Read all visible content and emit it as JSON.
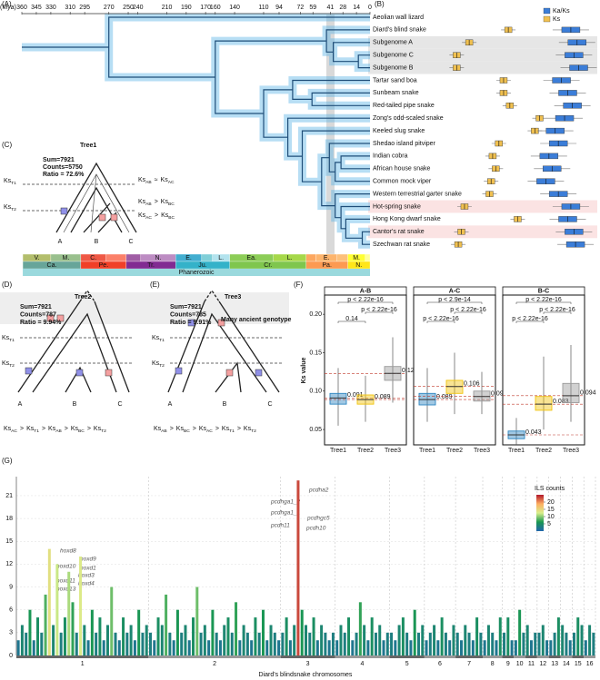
{
  "panel_labels": [
    "(A)",
    "(B)",
    "(C)",
    "(D)",
    "(E)",
    "(F)",
    "(G)"
  ],
  "panel_a": {
    "type": "timetree",
    "axis_label": "(Mya)",
    "xlim": [
      360,
      0
    ],
    "xticks": [
      360,
      345,
      330,
      310,
      295,
      270,
      250,
      240,
      210,
      190,
      170,
      160,
      140,
      110,
      94,
      72,
      59,
      41,
      28,
      14,
      0
    ],
    "species": [
      "Aeolian wall lizard",
      "Diard's blind snake",
      "Subgenome A",
      "Subgenome C",
      "Subgenome B",
      "Tartar sand boa",
      "Sunbeam snake",
      "Red-tailed pipe snake",
      "Zong's odd-scaled snake",
      "Keeled slug snake",
      "Shedao island pitviper",
      "Indian cobra",
      "African house snake",
      "Common mock viper",
      "Western terrestrial garter snake",
      "Hot-spring snake",
      "Hong Kong dwarf snake",
      "Cantor's rat snake",
      "Szechwan rat snake"
    ],
    "species_colors": [
      "#000000",
      "#d62728",
      "#d62728",
      "#d62728",
      "#d62728",
      "#000000",
      "#000000",
      "#000000",
      "#000000",
      "#000000",
      "#000000",
      "#000000",
      "#000000",
      "#000000",
      "#000000",
      "#d62728",
      "#000000",
      "#d62728",
      "#000000"
    ],
    "row_highlights": [
      null,
      null,
      "#e6e6e6",
      "#e6e6e6",
      "#e6e6e6",
      null,
      null,
      null,
      null,
      null,
      null,
      null,
      null,
      null,
      null,
      "#fbe3e3",
      null,
      "#fbe3e3",
      null
    ],
    "epochs": [
      {
        "label": "V.",
        "start": 359,
        "end": 330,
        "color": "#b3be6c"
      },
      {
        "label": "M.",
        "start": 330,
        "end": 299,
        "color": "#99c08d"
      },
      {
        "label": "C.",
        "start": 299,
        "end": 273,
        "color": "#ef5845"
      },
      {
        "label": null,
        "start": 273,
        "end": 252,
        "color": "#fb8069"
      },
      {
        "label": null,
        "start": 252,
        "end": 237,
        "color": "#a05da5"
      },
      {
        "label": "N.",
        "start": 237,
        "end": 201,
        "color": "#bd8cc3"
      },
      {
        "label": "E.",
        "start": 201,
        "end": 174,
        "color": "#42aed0"
      },
      {
        "label": null,
        "start": 174,
        "end": 163,
        "color": "#80cfd8"
      },
      {
        "label": "L.",
        "start": 163,
        "end": 145,
        "color": "#b3e3ee"
      },
      {
        "label": "Ea.",
        "start": 145,
        "end": 100,
        "color": "#8ccd57"
      },
      {
        "label": "L.",
        "start": 100,
        "end": 66,
        "color": "#a6d84a"
      },
      {
        "label": null,
        "start": 66,
        "end": 56,
        "color": "#fda75f"
      },
      {
        "label": "E.",
        "start": 56,
        "end": 34,
        "color": "#fdb46c"
      },
      {
        "label": null,
        "start": 34,
        "end": 23,
        "color": "#fdc07a"
      },
      {
        "label": "M.",
        "start": 23,
        "end": 5,
        "color": "#ffff33"
      },
      {
        "label": null,
        "start": 5,
        "end": 0,
        "color": "#ffff99"
      }
    ],
    "periods": [
      {
        "label": "Ca.",
        "start": 359,
        "end": 299,
        "color": "#67a599"
      },
      {
        "label": "Pe.",
        "start": 299,
        "end": 252,
        "color": "#f04028"
      },
      {
        "label": "Tr.",
        "start": 252,
        "end": 201,
        "color": "#812b92"
      },
      {
        "label": "Ju.",
        "start": 201,
        "end": 145,
        "color": "#34b2c9"
      },
      {
        "label": "Cr.",
        "start": 145,
        "end": 66,
        "color": "#7fc64e"
      },
      {
        "label": "Pa.",
        "start": 66,
        "end": 23,
        "color": "#fd9a52"
      },
      {
        "label": "N.",
        "start": 23,
        "end": 0,
        "color": "#ffe619"
      }
    ],
    "eon": {
      "label": "Phanerozoic",
      "start": 359,
      "end": 0,
      "color": "#9ad9dd"
    }
  },
  "panel_b": {
    "type": "box",
    "legend": [
      "Ka/Ks",
      "Ks"
    ],
    "colors": [
      "#3b7dd8",
      "#f0c050"
    ],
    "xlim": [
      0,
      1
    ],
    "kaks": [
      null,
      0.86,
      0.9,
      0.88,
      0.91,
      0.8,
      0.84,
      0.87,
      0.82,
      0.76,
      0.78,
      0.72,
      0.74,
      0.7,
      0.78,
      0.86,
      0.84,
      0.88,
      0.89
    ],
    "ks": [
      null,
      0.46,
      0.21,
      0.13,
      0.13,
      0.43,
      0.43,
      0.47,
      0.66,
      0.63,
      0.4,
      0.36,
      0.38,
      0.35,
      0.34,
      0.18,
      0.52,
      0.16,
      0.14
    ]
  },
  "panel_c": {
    "type": "gene-tree",
    "title": "Tree1",
    "stats": [
      "Sum=7921",
      "Counts=5750",
      "Ratio = 72.6%"
    ],
    "tips": [
      "A",
      "B",
      "C"
    ],
    "ks_t1": {
      "base": "Ks",
      "sub": "T1"
    },
    "ks_t2": {
      "base": "Ks",
      "sub": "T2"
    },
    "relations": [
      [
        {
          "base": "Ks",
          "sub": "AB"
        },
        "≈",
        {
          "base": "Ks",
          "sub": "AC"
        }
      ],
      [
        {
          "base": "Ks",
          "sub": "AB"
        },
        ">",
        {
          "base": "Ks",
          "sub": "BC"
        }
      ],
      [
        {
          "base": "Ks",
          "sub": "AC"
        },
        ">",
        {
          "base": "Ks",
          "sub": "BC"
        }
      ]
    ]
  },
  "panel_d": {
    "type": "gene-tree",
    "title": "Tree2",
    "stats": [
      "Sum=7921",
      "Counts=787",
      "Ratio = 9.94%"
    ],
    "tips": [
      "A",
      "B",
      "C"
    ],
    "ks_t1": {
      "base": "Ks",
      "sub": "T1"
    },
    "ks_t2": {
      "base": "Ks",
      "sub": "T2"
    },
    "relation": [
      {
        "base": "Ks",
        "sub": "AC"
      },
      ">",
      {
        "base": "Ks",
        "sub": "T1"
      },
      ">",
      {
        "base": "Ks",
        "sub": "AB"
      },
      ">",
      {
        "base": "Ks",
        "sub": "BC"
      },
      ">",
      {
        "base": "Ks",
        "sub": "T2"
      }
    ]
  },
  "panel_e": {
    "type": "gene-tree",
    "title": "Tree3",
    "stats": [
      "Sum=7921",
      "Counts=785",
      "Ratio = 9.91%"
    ],
    "note": "Many ancient genotype",
    "tips": [
      "A",
      "B",
      "C"
    ],
    "ks_t1": {
      "base": "Ks",
      "sub": "T1"
    },
    "ks_t2": {
      "base": "Ks",
      "sub": "T2"
    },
    "relation": [
      {
        "base": "Ks",
        "sub": "AB"
      },
      ">",
      {
        "base": "Ks",
        "sub": "BC"
      },
      ">",
      {
        "base": "Ks",
        "sub": "AC"
      },
      ">",
      {
        "base": "Ks",
        "sub": "T1"
      },
      ">",
      {
        "base": "Ks",
        "sub": "T2"
      }
    ]
  },
  "panel_f": {
    "type": "box",
    "y_label": "Ks value",
    "ylim": [
      0.03,
      0.225
    ],
    "yticks": [
      0.05,
      {
        "value": 0.1,
        "label": "0.10"
      },
      0.15,
      {
        "value": 0.2,
        "label": "0.20"
      }
    ],
    "categories": [
      "Tree1",
      "Tree2",
      "Tree3"
    ],
    "colors": [
      "#2e86c1",
      "#f1c40f",
      "#9a9a9a"
    ],
    "facets": [
      {
        "title": "A-B",
        "min": [
          0.055,
          0.06,
          0.085
        ],
        "q1": [
          0.083,
          0.083,
          0.114
        ],
        "median": [
          0.091,
          0.089,
          0.123
        ],
        "q3": [
          0.097,
          0.095,
          0.132
        ],
        "max": [
          0.13,
          0.12,
          0.17
        ],
        "p_labels": [
          "0.14",
          "p < 2.22e-16",
          "p < 2.22e-16"
        ]
      },
      {
        "title": "A-C",
        "min": [
          0.06,
          0.07,
          0.07
        ],
        "q1": [
          0.082,
          0.097,
          0.087
        ],
        "median": [
          0.089,
          0.106,
          0.093
        ],
        "q3": [
          0.097,
          0.114,
          0.1
        ],
        "max": [
          0.13,
          0.15,
          0.125
        ],
        "p_labels": [
          "p < 2.22e-16",
          "p < 2.22e-16",
          "p < 2.9e-14"
        ]
      },
      {
        "title": "B-C",
        "min": [
          0.03,
          0.05,
          0.06
        ],
        "q1": [
          0.038,
          0.075,
          0.085
        ],
        "median": [
          0.043,
          0.083,
          0.094
        ],
        "q3": [
          0.048,
          0.093,
          0.11
        ],
        "max": [
          0.065,
          0.145,
          0.16
        ],
        "p_labels": [
          "p < 2.22e-16",
          "p < 2.22e-16",
          "p < 2.22e-16"
        ]
      }
    ]
  },
  "panel_g": {
    "type": "bar",
    "x_label": "Diard's blindsnake chromosomes",
    "ylim": [
      0,
      23.5
    ],
    "yticks": [
      0,
      3,
      6,
      9,
      12,
      15,
      18,
      21
    ],
    "color_title": "ILS counts",
    "color_lim": [
      0,
      25
    ],
    "color_ticks": [
      5,
      10,
      15,
      20
    ],
    "colormap": [
      "#2166ac",
      "#1a9850",
      "#d9ef8b",
      "#fdae61",
      "#b2182b"
    ],
    "chromosomes": [
      {
        "name": "1",
        "values": [
          2,
          4,
          3,
          6,
          2,
          5,
          3,
          8,
          14,
          4,
          12,
          3,
          5,
          11,
          7,
          3,
          13,
          4,
          2,
          6,
          3,
          5,
          2,
          4,
          9,
          3,
          2,
          5,
          3,
          4,
          2,
          6,
          3,
          4
        ]
      },
      {
        "name": "2",
        "values": [
          3,
          2,
          5,
          4,
          8,
          3,
          2,
          6,
          3,
          4,
          2,
          5,
          9,
          3,
          4,
          2,
          6,
          3,
          2,
          4,
          5,
          3,
          7,
          2,
          4,
          3,
          2,
          5,
          3,
          6,
          2,
          4,
          3,
          2
        ]
      },
      {
        "name": "3",
        "values": [
          3,
          5,
          2,
          4,
          23,
          6,
          4,
          3,
          5,
          2,
          4,
          3,
          2,
          3
        ]
      },
      {
        "name": "4",
        "values": [
          2,
          4,
          3,
          5,
          2,
          3,
          7,
          4,
          2,
          5,
          3,
          4,
          2,
          3
        ]
      },
      {
        "name": "5",
        "values": [
          3,
          2,
          4,
          5,
          3,
          2,
          6,
          3,
          4
        ]
      },
      {
        "name": "6",
        "values": [
          2,
          3,
          4,
          2,
          5,
          3,
          2,
          4
        ]
      },
      {
        "name": "7",
        "values": [
          3,
          2,
          4,
          3,
          2,
          5,
          3
        ]
      },
      {
        "name": "8",
        "values": [
          2,
          4,
          3,
          2,
          5
        ]
      },
      {
        "name": "9",
        "values": [
          3,
          5,
          2
        ]
      },
      {
        "name": "10",
        "values": [
          2,
          6,
          3
        ]
      },
      {
        "name": "11",
        "values": [
          4,
          2,
          3
        ]
      },
      {
        "name": "12",
        "values": [
          3,
          4,
          2
        ]
      },
      {
        "name": "13",
        "values": [
          2,
          3,
          5
        ]
      },
      {
        "name": "14",
        "values": [
          4,
          3,
          2
        ]
      },
      {
        "name": "15",
        "values": [
          3,
          5,
          4
        ]
      },
      {
        "name": "16",
        "values": [
          2,
          4,
          3
        ]
      }
    ],
    "genes": [
      "pcdha2",
      "pcdhga1_2",
      "pcdhga1_1",
      "pcdhgc5",
      "pcdh11",
      "pcdh10",
      "hoxd8",
      "hoxd9",
      "hoxd10",
      "hoxd1",
      "hoxd3",
      "hoxd11",
      "hoxd4",
      "hoxd13"
    ]
  }
}
